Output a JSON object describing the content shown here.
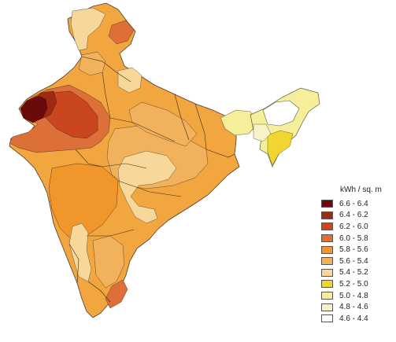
{
  "legend": {
    "title": "kWh / sq. m",
    "classes": [
      {
        "range": "6.6 - 6.4",
        "color": "#6b0a0a"
      },
      {
        "range": "6.4 - 6.2",
        "color": "#9e2a14"
      },
      {
        "range": "6.2 - 6.0",
        "color": "#c9461f"
      },
      {
        "range": "6.0 - 5.8",
        "color": "#dc7038"
      },
      {
        "range": "5.8 - 5.6",
        "color": "#f0962a"
      },
      {
        "range": "5.6 - 5.4",
        "color": "#f2b25c"
      },
      {
        "range": "5.4 - 5.2",
        "color": "#f7d89a"
      },
      {
        "range": "5.2 - 5.0",
        "color": "#f2d630"
      },
      {
        "range": "5.0 - 4.8",
        "color": "#f5ee9a"
      },
      {
        "range": "4.8 - 4.6",
        "color": "#f7f2c8"
      },
      {
        "range": "4.6 - 4.4",
        "color": "#ffffff"
      }
    ]
  }
}
